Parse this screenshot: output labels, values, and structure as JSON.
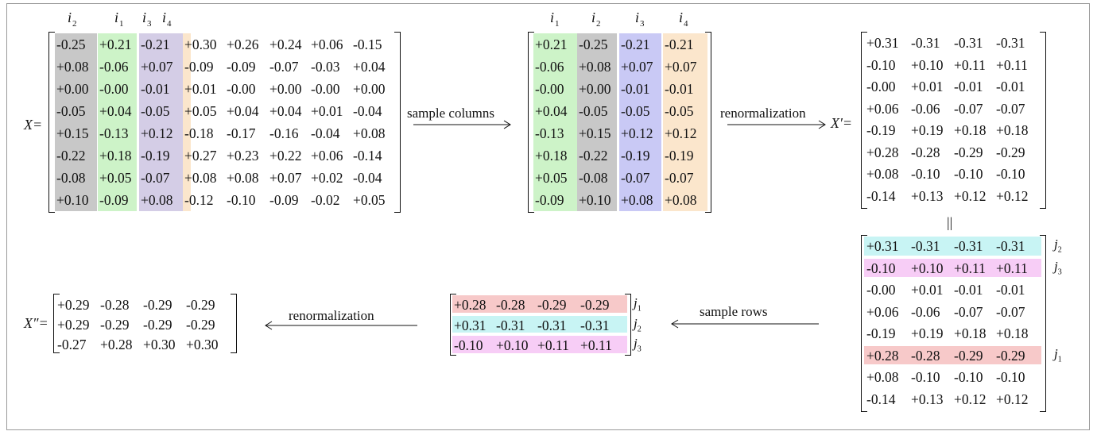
{
  "labels": {
    "X": "X=",
    "Xp": "X′=",
    "Xpp": "X″="
  },
  "arrows": {
    "sample_columns": "sample columns",
    "renorm1": "renormalization",
    "sample_rows": "sample rows",
    "renorm2": "renormalization"
  },
  "equals_sign": "||",
  "colors": {
    "gray": "#c8c8c8",
    "green": "#cdf3c8",
    "purple": "#d4cde6",
    "blue": "#c9c9f5",
    "orange": "#fbe6cc",
    "cyan": "#c8f4f4",
    "magenta": "#f7cdf6",
    "red": "#f7c9c9"
  },
  "X": {
    "headers": [
      {
        "name": "i",
        "sub": "2"
      },
      {
        "name": "i",
        "sub": "1"
      },
      {
        "name": "i",
        "sub": "3"
      },
      {
        "name": "i",
        "sub": "4"
      }
    ],
    "rows": [
      [
        "-0.25",
        "+0.21",
        "-0.21",
        "+0.30",
        "+0.26",
        "+0.24",
        "+0.06",
        "-0.15"
      ],
      [
        "+0.08",
        "-0.06",
        "+0.07",
        "-0.09",
        "-0.09",
        "-0.07",
        "-0.03",
        "+0.04"
      ],
      [
        "+0.00",
        "-0.00",
        "-0.01",
        "+0.01",
        "-0.00",
        "+0.00",
        "-0.00",
        "+0.00"
      ],
      [
        "-0.05",
        "+0.04",
        "-0.05",
        "+0.05",
        "+0.04",
        "+0.04",
        "+0.01",
        "-0.04"
      ],
      [
        "+0.15",
        "-0.13",
        "+0.12",
        "-0.18",
        "-0.17",
        "-0.16",
        "-0.04",
        "+0.08"
      ],
      [
        "-0.22",
        "+0.18",
        "-0.19",
        "+0.27",
        "+0.23",
        "+0.22",
        "+0.06",
        "-0.14"
      ],
      [
        "-0.08",
        "+0.05",
        "-0.07",
        "+0.08",
        "+0.08",
        "+0.07",
        "+0.02",
        "-0.04"
      ],
      [
        "+0.10",
        "-0.09",
        "+0.08",
        "-0.12",
        "-0.10",
        "-0.09",
        "-0.02",
        "+0.05"
      ]
    ]
  },
  "S": {
    "headers": [
      {
        "name": "i",
        "sub": "1"
      },
      {
        "name": "i",
        "sub": "2"
      },
      {
        "name": "i",
        "sub": "3"
      },
      {
        "name": "i",
        "sub": "4"
      }
    ],
    "rows": [
      [
        "+0.21",
        "-0.25",
        "-0.21",
        "-0.21"
      ],
      [
        "-0.06",
        "+0.08",
        "+0.07",
        "+0.07"
      ],
      [
        "-0.00",
        "+0.00",
        "-0.01",
        "-0.01"
      ],
      [
        "+0.04",
        "-0.05",
        "-0.05",
        "-0.05"
      ],
      [
        "-0.13",
        "+0.15",
        "+0.12",
        "+0.12"
      ],
      [
        "+0.18",
        "-0.22",
        "-0.19",
        "-0.19"
      ],
      [
        "+0.05",
        "-0.08",
        "-0.07",
        "-0.07"
      ],
      [
        "-0.09",
        "+0.10",
        "+0.08",
        "+0.08"
      ]
    ]
  },
  "Xp": {
    "rows": [
      [
        "+0.31",
        "-0.31",
        "-0.31",
        "-0.31"
      ],
      [
        "-0.10",
        "+0.10",
        "+0.11",
        "+0.11"
      ],
      [
        "-0.00",
        "+0.01",
        "-0.01",
        "-0.01"
      ],
      [
        "+0.06",
        "-0.06",
        "-0.07",
        "-0.07"
      ],
      [
        "-0.19",
        "+0.19",
        "+0.18",
        "+0.18"
      ],
      [
        "+0.28",
        "-0.28",
        "-0.29",
        "-0.29"
      ],
      [
        "+0.08",
        "-0.10",
        "-0.10",
        "-0.10"
      ],
      [
        "-0.14",
        "+0.13",
        "+0.12",
        "+0.12"
      ]
    ]
  },
  "Xp2": {
    "rows": [
      [
        "+0.31",
        "-0.31",
        "-0.31",
        "-0.31"
      ],
      [
        "-0.10",
        "+0.10",
        "+0.11",
        "+0.11"
      ],
      [
        "-0.00",
        "+0.01",
        "-0.01",
        "-0.01"
      ],
      [
        "+0.06",
        "-0.06",
        "-0.07",
        "-0.07"
      ],
      [
        "-0.19",
        "+0.19",
        "+0.18",
        "+0.18"
      ],
      [
        "+0.28",
        "-0.28",
        "-0.29",
        "-0.29"
      ],
      [
        "+0.08",
        "-0.10",
        "-0.10",
        "-0.10"
      ],
      [
        "-0.14",
        "+0.13",
        "+0.12",
        "+0.12"
      ]
    ],
    "row_labels": [
      {
        "row": 0,
        "name": "j",
        "sub": "2"
      },
      {
        "row": 1,
        "name": "j",
        "sub": "3"
      },
      {
        "row": 5,
        "name": "j",
        "sub": "1"
      }
    ]
  },
  "R": {
    "rows": [
      [
        "+0.28",
        "-0.28",
        "-0.29",
        "-0.29"
      ],
      [
        "+0.31",
        "-0.31",
        "-0.31",
        "-0.31"
      ],
      [
        "-0.10",
        "+0.10",
        "+0.11",
        "+0.11"
      ]
    ],
    "row_labels": [
      {
        "row": 0,
        "name": "j",
        "sub": "1"
      },
      {
        "row": 1,
        "name": "j",
        "sub": "2"
      },
      {
        "row": 2,
        "name": "j",
        "sub": "3"
      }
    ]
  },
  "Xpp": {
    "rows": [
      [
        "+0.29",
        "-0.28",
        "-0.29",
        "-0.29"
      ],
      [
        "+0.29",
        "-0.29",
        "-0.29",
        "-0.29"
      ],
      [
        "-0.27",
        "+0.28",
        "+0.30",
        "+0.30"
      ]
    ]
  }
}
